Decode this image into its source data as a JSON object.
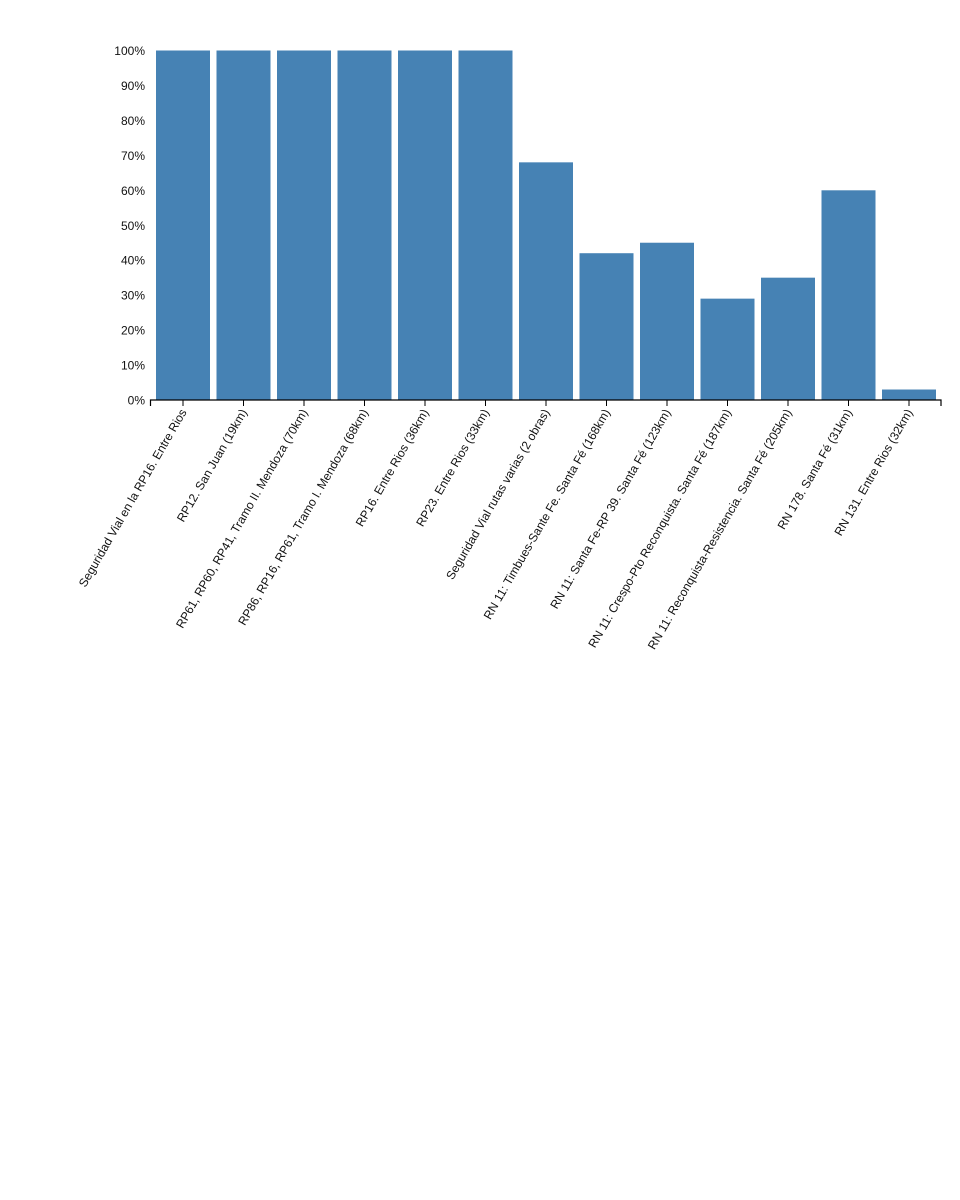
{
  "chart_data": {
    "type": "bar",
    "title": "",
    "xlabel": "",
    "ylabel": "",
    "categories": [
      "Seguridad Vial en la RP16. Entre Rios",
      "RP12. San Juan (19km)",
      "RP61, RP60, RP41, Tramo II. Mendoza (70km)",
      "RP86, RP16, RP61, Tramo I. Mendoza (68km)",
      "RP16. Entre Rios (36km)",
      "RP23. Entre Rios (33km)",
      "Seguridad Vial rutas varias (2 obras)",
      "RN 11: Timbues-Sante Fe. Santa Fé (168km)",
      "RN 11: Santa Fe-RP 39. Santa Fé (123km)",
      "RN 11: Crespo-Pto Reconquista. Santa Fé (187km)",
      "RN 11: Reconquista-Resistencia. Santa Fé (205km)",
      "RN 178. Santa Fé (31km)",
      "RN 131. Entre Rios (32km)"
    ],
    "values": [
      100,
      100,
      100,
      100,
      100,
      100,
      68,
      42,
      45,
      29,
      35,
      60,
      3
    ],
    "value_suffix": "%",
    "ylim": [
      0,
      100
    ],
    "y_ticks": [
      "0%",
      "10%",
      "20%",
      "30%",
      "40%",
      "50%",
      "60%",
      "70%",
      "80%",
      "90%",
      "100%"
    ],
    "grid": false,
    "legend": "none",
    "bar_color": "#4682b4",
    "axis_color": "#000000",
    "text_color": "#111111",
    "background": "#ffffff"
  }
}
